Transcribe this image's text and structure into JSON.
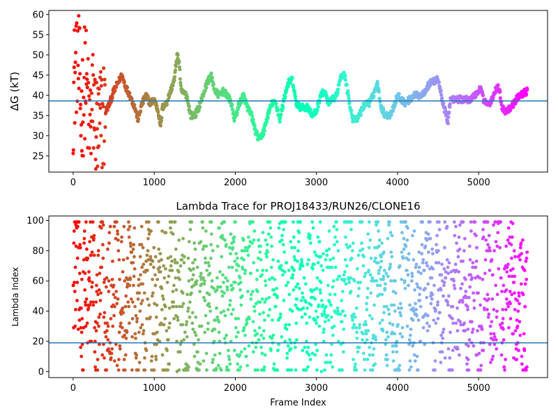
{
  "chart_data": [
    {
      "type": "scatter",
      "title": "",
      "ylabel": "ΔG (kT)",
      "xlabel": "",
      "xlim": [
        -300,
        5850
      ],
      "ylim": [
        21,
        61
      ],
      "xticks": [
        0,
        1000,
        2000,
        3000,
        4000,
        5000
      ],
      "yticks": [
        25,
        30,
        35,
        40,
        45,
        50,
        55,
        60
      ],
      "hline": 38.6,
      "hline_color": "#1f77b4",
      "colormap": "rainbow",
      "color_order": "red at frame 0, passing through orange, yellow, green, cyan and blue, to purple at the last frame",
      "frame_range": [
        0,
        5600
      ],
      "trace": [
        [
          0,
          40
        ],
        [
          50,
          52
        ],
        [
          100,
          35
        ],
        [
          150,
          45
        ],
        [
          200,
          32
        ],
        [
          250,
          38
        ],
        [
          300,
          30
        ],
        [
          350,
          34
        ],
        [
          400,
          36
        ],
        [
          450,
          38
        ],
        [
          500,
          41
        ],
        [
          550,
          43
        ],
        [
          600,
          45
        ],
        [
          650,
          42
        ],
        [
          700,
          40
        ],
        [
          760,
          37
        ],
        [
          800,
          34
        ],
        [
          850,
          38
        ],
        [
          900,
          40
        ],
        [
          950,
          38
        ],
        [
          1000,
          39
        ],
        [
          1050,
          36
        ],
        [
          1080,
          32
        ],
        [
          1100,
          37
        ],
        [
          1150,
          38
        ],
        [
          1200,
          41
        ],
        [
          1250,
          44
        ],
        [
          1280,
          50
        ],
        [
          1310,
          48
        ],
        [
          1330,
          41
        ],
        [
          1400,
          40
        ],
        [
          1450,
          35
        ],
        [
          1500,
          35
        ],
        [
          1550,
          37
        ],
        [
          1600,
          40
        ],
        [
          1650,
          43
        ],
        [
          1700,
          45
        ],
        [
          1750,
          41
        ],
        [
          1800,
          40
        ],
        [
          1850,
          41
        ],
        [
          1900,
          40
        ],
        [
          1950,
          38
        ],
        [
          1990,
          34
        ],
        [
          2050,
          38
        ],
        [
          2100,
          40
        ],
        [
          2150,
          37
        ],
        [
          2200,
          35
        ],
        [
          2250,
          31
        ],
        [
          2290,
          29
        ],
        [
          2350,
          31
        ],
        [
          2400,
          35
        ],
        [
          2450,
          38
        ],
        [
          2500,
          38
        ],
        [
          2550,
          34
        ],
        [
          2600,
          39
        ],
        [
          2650,
          43
        ],
        [
          2700,
          44
        ],
        [
          2750,
          38
        ],
        [
          2800,
          37
        ],
        [
          2850,
          37
        ],
        [
          2900,
          37
        ],
        [
          2950,
          35
        ],
        [
          3000,
          36
        ],
        [
          3050,
          40
        ],
        [
          3100,
          41
        ],
        [
          3150,
          38
        ],
        [
          3200,
          39
        ],
        [
          3250,
          40
        ],
        [
          3300,
          45
        ],
        [
          3350,
          45
        ],
        [
          3400,
          39
        ],
        [
          3450,
          34
        ],
        [
          3500,
          34
        ],
        [
          3550,
          36
        ],
        [
          3600,
          38
        ],
        [
          3650,
          38
        ],
        [
          3700,
          40
        ],
        [
          3750,
          43
        ],
        [
          3800,
          37
        ],
        [
          3850,
          35
        ],
        [
          3900,
          35
        ],
        [
          3950,
          37
        ],
        [
          4000,
          40
        ],
        [
          4050,
          39
        ],
        [
          4100,
          38
        ],
        [
          4200,
          40
        ],
        [
          4300,
          40
        ],
        [
          4400,
          43
        ],
        [
          4500,
          44
        ],
        [
          4550,
          39
        ],
        [
          4600,
          35
        ],
        [
          4620,
          33
        ],
        [
          4650,
          39
        ],
        [
          4700,
          39
        ],
        [
          4800,
          39
        ],
        [
          4900,
          39
        ],
        [
          5000,
          41
        ],
        [
          5030,
          42
        ],
        [
          5060,
          39
        ],
        [
          5100,
          38
        ],
        [
          5150,
          38
        ],
        [
          5200,
          41
        ],
        [
          5250,
          42
        ],
        [
          5290,
          37
        ],
        [
          5330,
          36
        ],
        [
          5400,
          37
        ],
        [
          5500,
          40
        ],
        [
          5600,
          41
        ]
      ]
    },
    {
      "type": "scatter",
      "title": "Lambda Trace for PROJ18433/RUN26/CLONE16",
      "xlabel": "Frame Index",
      "ylabel": "Lambda Index",
      "xlim": [
        -300,
        5850
      ],
      "ylim": [
        -4,
        103
      ],
      "xticks": [
        0,
        1000,
        2000,
        3000,
        4000,
        5000
      ],
      "yticks": [
        0,
        20,
        40,
        60,
        80,
        100
      ],
      "hline": 19,
      "hline_color": "#1f77b4",
      "colormap": "rainbow",
      "color_order": "red at frame 0, passing through orange, yellow, green, cyan and blue, to purple at the last frame",
      "frame_range": [
        0,
        5600
      ],
      "trace": [
        [
          0,
          40
        ],
        [
          40,
          90
        ],
        [
          80,
          60
        ],
        [
          120,
          20
        ],
        [
          160,
          75
        ],
        [
          200,
          50
        ],
        [
          240,
          95
        ],
        [
          280,
          10
        ],
        [
          320,
          45
        ],
        [
          360,
          80
        ],
        [
          400,
          5
        ],
        [
          440,
          60
        ],
        [
          480,
          30
        ],
        [
          520,
          95
        ],
        [
          560,
          40
        ],
        [
          600,
          70
        ],
        [
          640,
          15
        ],
        [
          680,
          85
        ],
        [
          720,
          35
        ],
        [
          760,
          60
        ],
        [
          800,
          5
        ],
        [
          840,
          75
        ],
        [
          880,
          25
        ],
        [
          920,
          95
        ],
        [
          960,
          50
        ],
        [
          1000,
          20
        ],
        [
          1050,
          80
        ],
        [
          1100,
          40
        ],
        [
          1150,
          10
        ],
        [
          1200,
          65
        ],
        [
          1250,
          90
        ],
        [
          1300,
          30
        ],
        [
          1350,
          55
        ],
        [
          1400,
          5
        ],
        [
          1450,
          85
        ],
        [
          1500,
          45
        ],
        [
          1550,
          20
        ],
        [
          1600,
          95
        ],
        [
          1650,
          35
        ],
        [
          1700,
          70
        ],
        [
          1750,
          10
        ],
        [
          1800,
          60
        ],
        [
          1850,
          90
        ],
        [
          1900,
          25
        ],
        [
          1950,
          50
        ],
        [
          2000,
          80
        ],
        [
          2050,
          15
        ],
        [
          2100,
          65
        ],
        [
          2150,
          40
        ],
        [
          2200,
          95
        ],
        [
          2250,
          5
        ],
        [
          2300,
          55
        ],
        [
          2350,
          30
        ],
        [
          2400,
          85
        ],
        [
          2450,
          45
        ],
        [
          2500,
          10
        ],
        [
          2550,
          70
        ],
        [
          2600,
          95
        ],
        [
          2650,
          20
        ],
        [
          2700,
          60
        ],
        [
          2750,
          40
        ],
        [
          2800,
          90
        ],
        [
          2850,
          5
        ],
        [
          2900,
          50
        ],
        [
          2950,
          75
        ],
        [
          3000,
          30
        ],
        [
          3050,
          85
        ],
        [
          3100,
          15
        ],
        [
          3150,
          60
        ],
        [
          3200,
          40
        ],
        [
          3250,
          95
        ],
        [
          3300,
          5
        ],
        [
          3350,
          70
        ],
        [
          3400,
          90
        ],
        [
          3450,
          45
        ],
        [
          3500,
          20
        ],
        [
          3550,
          80
        ],
        [
          3600,
          35
        ],
        [
          3650,
          60
        ],
        [
          3700,
          10
        ],
        [
          3750,
          95
        ],
        [
          3800,
          50
        ],
        [
          3850,
          25
        ],
        [
          3900,
          75
        ],
        [
          3950,
          40
        ],
        [
          4000,
          5
        ],
        [
          4050,
          65
        ],
        [
          4100,
          90
        ],
        [
          4150,
          30
        ],
        [
          4200,
          55
        ],
        [
          4250,
          15
        ],
        [
          4300,
          80
        ],
        [
          4350,
          45
        ],
        [
          4400,
          95
        ],
        [
          4450,
          20
        ],
        [
          4500,
          70
        ],
        [
          4550,
          35
        ],
        [
          4600,
          85
        ],
        [
          4650,
          10
        ],
        [
          4700,
          60
        ],
        [
          4750,
          40
        ],
        [
          4800,
          90
        ],
        [
          4850,
          25
        ],
        [
          4900,
          55
        ],
        [
          4950,
          75
        ],
        [
          5000,
          5
        ],
        [
          5050,
          50
        ],
        [
          5100,
          85
        ],
        [
          5150,
          30
        ],
        [
          5200,
          65
        ],
        [
          5250,
          95
        ],
        [
          5300,
          15
        ],
        [
          5350,
          45
        ],
        [
          5400,
          80
        ],
        [
          5450,
          35
        ],
        [
          5500,
          60
        ],
        [
          5550,
          20
        ],
        [
          5600,
          45
        ]
      ]
    }
  ]
}
